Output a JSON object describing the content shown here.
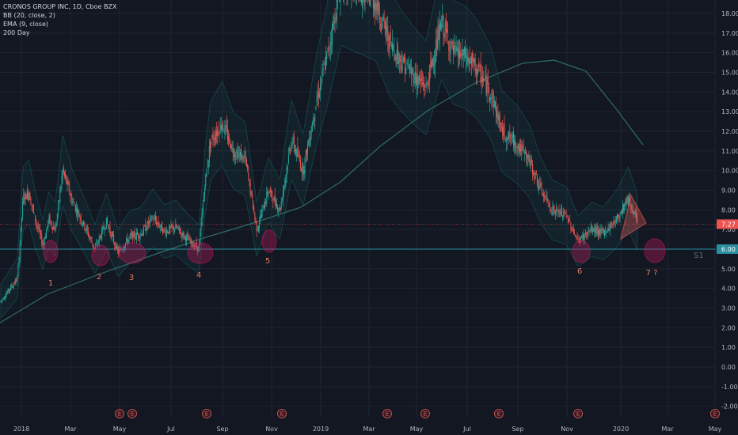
{
  "legend": {
    "symbol": "CRONOS GROUP INC, 1D, Cboe BZX",
    "bb": "BB (20, close, 2)",
    "ema": "EMA (9, close)",
    "sma": "200 Day"
  },
  "colors": {
    "background": "#131722",
    "grid": "#1f2433",
    "up": "#26a69a",
    "down": "#ef5350",
    "band": "#1e9c8c",
    "ma": "#2e6b68",
    "support": "#2a8fa0",
    "circle": "#c2185b",
    "annotation": "#e07a5f",
    "s1_label": "#5d6b7a"
  },
  "chart_data": {
    "type": "candlestick",
    "title": "CRONOS GROUP INC, 1D, Cboe BZX",
    "ylim": [
      -2.4,
      18.5
    ],
    "y_ticks": [
      "18.00",
      "17.00",
      "16.00",
      "15.00",
      "14.00",
      "13.00",
      "12.00",
      "11.00",
      "10.00",
      "9.00",
      "8.00",
      "7.00",
      "6.00",
      "5.00",
      "4.00",
      "3.00",
      "2.00",
      "1.00",
      "0.00",
      "-1.00",
      "-2.00"
    ],
    "x_labels": [
      "2018",
      "Mar",
      "May",
      "Jul",
      "Sep",
      "Nov",
      "2019",
      "Mar",
      "May",
      "Jul",
      "Sep",
      "Nov",
      "2020",
      "Mar",
      "May"
    ],
    "price_series": [
      {
        "date": "2017-12",
        "close": 3.3
      },
      {
        "date": "2018-01-05",
        "close": 4.5
      },
      {
        "date": "2018-01-12",
        "close": 8.6
      },
      {
        "date": "2018-01-19",
        "close": 8.9
      },
      {
        "date": "2018-01-26",
        "close": 7.6
      },
      {
        "date": "2018-02-05",
        "close": 6.2
      },
      {
        "date": "2018-02-12",
        "close": 7.5
      },
      {
        "date": "2018-02-20",
        "close": 7.0
      },
      {
        "date": "2018-03-01",
        "close": 10.0
      },
      {
        "date": "2018-03-12",
        "close": 8.5
      },
      {
        "date": "2018-03-26",
        "close": 7.3
      },
      {
        "date": "2018-04-09",
        "close": 6.0
      },
      {
        "date": "2018-04-23",
        "close": 7.4
      },
      {
        "date": "2018-05-07",
        "close": 5.8
      },
      {
        "date": "2018-05-21",
        "close": 6.6
      },
      {
        "date": "2018-06-04",
        "close": 6.8
      },
      {
        "date": "2018-06-18",
        "close": 7.6
      },
      {
        "date": "2018-07-02",
        "close": 6.9
      },
      {
        "date": "2018-07-16",
        "close": 7.1
      },
      {
        "date": "2018-07-30",
        "close": 6.5
      },
      {
        "date": "2018-08-13",
        "close": 6.0
      },
      {
        "date": "2018-08-20",
        "close": 9.3
      },
      {
        "date": "2018-08-27",
        "close": 11.5
      },
      {
        "date": "2018-09-10",
        "close": 12.4
      },
      {
        "date": "2018-09-24",
        "close": 11.0
      },
      {
        "date": "2018-10-08",
        "close": 10.6
      },
      {
        "date": "2018-10-22",
        "close": 7.0
      },
      {
        "date": "2018-11-05",
        "close": 9.0
      },
      {
        "date": "2018-11-19",
        "close": 8.0
      },
      {
        "date": "2018-12-03",
        "close": 11.6
      },
      {
        "date": "2018-12-17",
        "close": 10.0
      },
      {
        "date": "2019-01-02",
        "close": 13.5
      },
      {
        "date": "2019-01-16",
        "close": 16.0
      },
      {
        "date": "2019-02-01",
        "close": 19.5
      },
      {
        "date": "2019-03-15",
        "close": 18.6
      },
      {
        "date": "2019-04-01",
        "close": 16.5
      },
      {
        "date": "2019-04-15",
        "close": 15.6
      },
      {
        "date": "2019-05-01",
        "close": 14.8
      },
      {
        "date": "2019-05-15",
        "close": 14.2
      },
      {
        "date": "2019-06-03",
        "close": 17.5
      },
      {
        "date": "2019-06-17",
        "close": 16.0
      },
      {
        "date": "2019-07-01",
        "close": 15.8
      },
      {
        "date": "2019-07-15",
        "close": 15.2
      },
      {
        "date": "2019-08-01",
        "close": 14.0
      },
      {
        "date": "2019-08-15",
        "close": 12.0
      },
      {
        "date": "2019-09-03",
        "close": 11.3
      },
      {
        "date": "2019-09-17",
        "close": 10.5
      },
      {
        "date": "2019-10-01",
        "close": 9.0
      },
      {
        "date": "2019-10-15",
        "close": 8.0
      },
      {
        "date": "2019-11-01",
        "close": 7.7
      },
      {
        "date": "2019-11-15",
        "close": 6.4
      },
      {
        "date": "2019-12-02",
        "close": 7.0
      },
      {
        "date": "2019-12-16",
        "close": 6.8
      },
      {
        "date": "2020-01-02",
        "close": 7.6
      },
      {
        "date": "2020-01-15",
        "close": 8.6
      },
      {
        "date": "2020-01-27",
        "close": 7.27
      }
    ],
    "support_level": 6.0,
    "support_label": "S1",
    "current_price_label": "7.27",
    "support_price_label": "6.00",
    "annotations": [
      "1",
      "2",
      "3",
      "4",
      "5",
      "6",
      "7 ?"
    ],
    "earnings_marker": "E"
  }
}
